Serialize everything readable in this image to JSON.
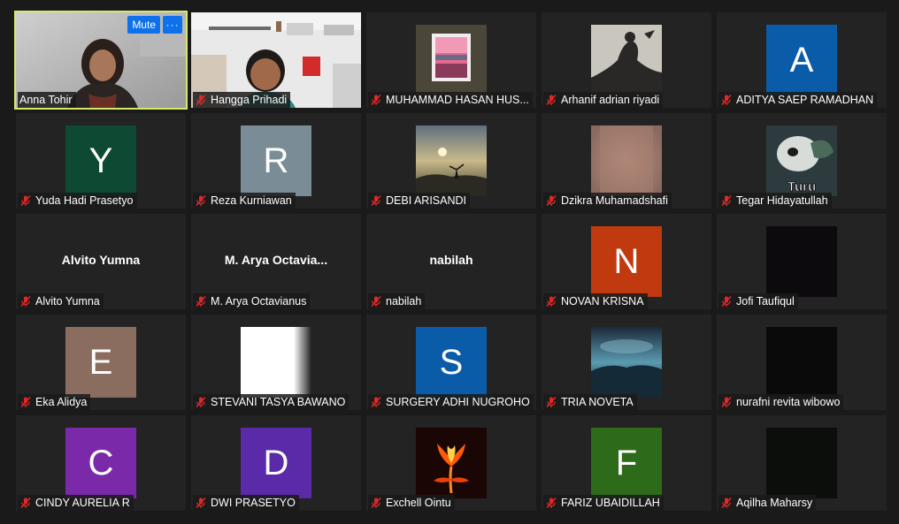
{
  "controls": {
    "mute_label": "Mute",
    "more_label": "···"
  },
  "participants": [
    {
      "name": "Anna Tohir",
      "kind": "video",
      "muted": false
    },
    {
      "name": "Hangga Prihadi",
      "kind": "video",
      "muted": true
    },
    {
      "name": "MUHAMMAD HASAN HUS...",
      "kind": "photo",
      "muted": true
    },
    {
      "name": "Arhanif adrian riyadi",
      "kind": "photo",
      "muted": true
    },
    {
      "name": "ADITYA SAEP RAMADHAN",
      "kind": "letter",
      "letter": "A",
      "color": "#0a5ca8",
      "muted": true
    },
    {
      "name": "Yuda Hadi Prasetyo",
      "kind": "letter",
      "letter": "Y",
      "color": "#0e4a33",
      "muted": true
    },
    {
      "name": "Reza Kurniawan",
      "kind": "letter",
      "letter": "R",
      "color": "#7a8c96",
      "muted": true
    },
    {
      "name": "DEBI ARISANDI",
      "kind": "photo",
      "muted": true
    },
    {
      "name": "Dzikra Muhamadshafi",
      "kind": "photo",
      "muted": true
    },
    {
      "name": "Tegar Hidayatullah",
      "kind": "photo",
      "caption": "Turu",
      "muted": true
    },
    {
      "name": "Alvito Yumna",
      "kind": "text",
      "display": "Alvito Yumna",
      "muted": true
    },
    {
      "name": "M. Arya Octavianus",
      "kind": "text",
      "display": "M. Arya Octavia...",
      "muted": true
    },
    {
      "name": "nabilah",
      "kind": "text",
      "display": "nabilah",
      "muted": true
    },
    {
      "name": "NOVAN KRISNA",
      "kind": "letter",
      "letter": "N",
      "color": "#c1390f",
      "muted": true
    },
    {
      "name": "Jofi Taufiqul",
      "kind": "photo",
      "muted": true
    },
    {
      "name": "Eka Alidya",
      "kind": "letter",
      "letter": "E",
      "color": "#8b6d60",
      "muted": true
    },
    {
      "name": "STEVANI TASYA BAWANO",
      "kind": "photo",
      "muted": true
    },
    {
      "name": "SURGERY ADHI NUGROHO",
      "kind": "letter",
      "letter": "S",
      "color": "#0a5ca8",
      "muted": true
    },
    {
      "name": "TRIA NOVETA",
      "kind": "photo",
      "muted": true
    },
    {
      "name": "nurafni revita wibowo",
      "kind": "photo",
      "muted": true
    },
    {
      "name": "CINDY AURELIA R",
      "kind": "letter",
      "letter": "C",
      "color": "#7a2aa8",
      "muted": true
    },
    {
      "name": "DWI PRASETYO",
      "kind": "letter",
      "letter": "D",
      "color": "#5a2aa8",
      "muted": true
    },
    {
      "name": "Exchell Ointu",
      "kind": "photo",
      "muted": true
    },
    {
      "name": "FARIZ UBAIDILLAH",
      "kind": "letter",
      "letter": "F",
      "color": "#2d6a1a",
      "muted": true
    },
    {
      "name": "Aqilha Maharsy",
      "kind": "photo",
      "muted": true
    }
  ]
}
